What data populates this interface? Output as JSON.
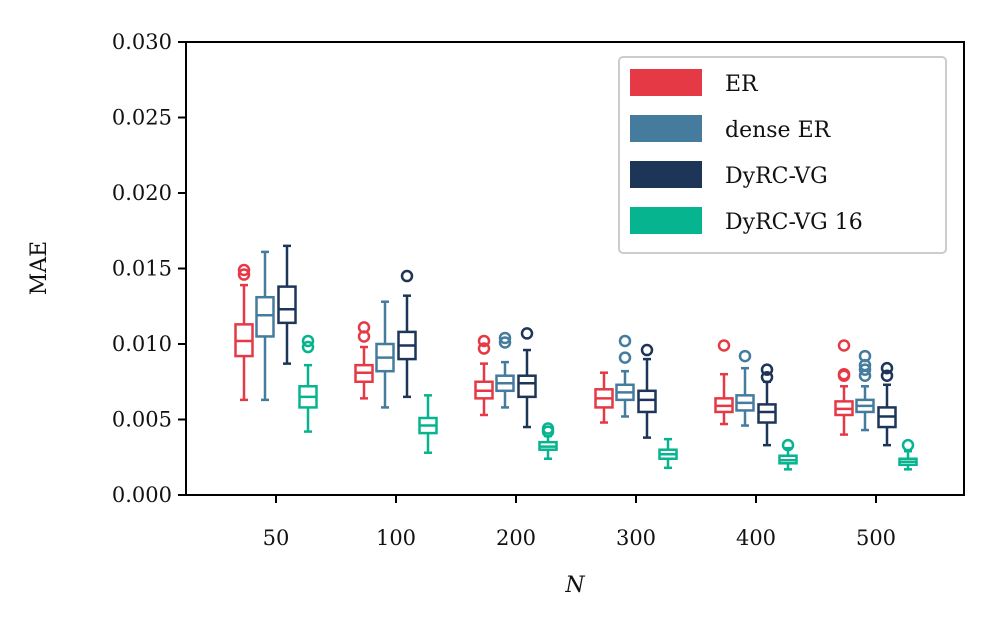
{
  "chart_data": {
    "type": "boxplot",
    "xlabel": "N",
    "ylabel": "MAE",
    "ylim": [
      0,
      0.03
    ],
    "yticks": [
      "0.000",
      "0.005",
      "0.010",
      "0.015",
      "0.020",
      "0.025",
      "0.030"
    ],
    "yticks_values": [
      0,
      0.005,
      0.01,
      0.015,
      0.02,
      0.025,
      0.03
    ],
    "categories": [
      "50",
      "100",
      "200",
      "300",
      "400",
      "500"
    ],
    "legend_position": "top-right",
    "grid": false,
    "series": [
      {
        "name": "ER",
        "color": "#e63946",
        "boxes": [
          {
            "whislo": 0.0063,
            "q1": 0.0092,
            "med": 0.0102,
            "q3": 0.0113,
            "whishi": 0.0139,
            "fliers": [
              0.0146,
              0.0149
            ]
          },
          {
            "whislo": 0.0064,
            "q1": 0.0075,
            "med": 0.0081,
            "q3": 0.0086,
            "whishi": 0.0098,
            "fliers": [
              0.0105,
              0.0111
            ]
          },
          {
            "whislo": 0.0053,
            "q1": 0.0064,
            "med": 0.0069,
            "q3": 0.0075,
            "whishi": 0.0087,
            "fliers": [
              0.0097,
              0.0102
            ]
          },
          {
            "whislo": 0.0048,
            "q1": 0.0058,
            "med": 0.0064,
            "q3": 0.007,
            "whishi": 0.0081,
            "fliers": []
          },
          {
            "whislo": 0.0047,
            "q1": 0.0055,
            "med": 0.0059,
            "q3": 0.0064,
            "whishi": 0.008,
            "fliers": [
              0.0099
            ]
          },
          {
            "whislo": 0.004,
            "q1": 0.0053,
            "med": 0.0057,
            "q3": 0.0062,
            "whishi": 0.0072,
            "fliers": [
              0.0079,
              0.008,
              0.0099
            ]
          }
        ]
      },
      {
        "name": "dense ER",
        "color": "#457b9d",
        "boxes": [
          {
            "whislo": 0.0063,
            "q1": 0.0105,
            "med": 0.0119,
            "q3": 0.0131,
            "whishi": 0.0161,
            "fliers": []
          },
          {
            "whislo": 0.0058,
            "q1": 0.0082,
            "med": 0.0091,
            "q3": 0.01,
            "whishi": 0.0128,
            "fliers": []
          },
          {
            "whislo": 0.0058,
            "q1": 0.0069,
            "med": 0.0074,
            "q3": 0.0079,
            "whishi": 0.0088,
            "fliers": [
              0.0101,
              0.0104
            ]
          },
          {
            "whislo": 0.0052,
            "q1": 0.0063,
            "med": 0.0068,
            "q3": 0.0073,
            "whishi": 0.0082,
            "fliers": [
              0.0091,
              0.0102
            ]
          },
          {
            "whislo": 0.0046,
            "q1": 0.0056,
            "med": 0.0061,
            "q3": 0.0066,
            "whishi": 0.0084,
            "fliers": [
              0.0092
            ]
          },
          {
            "whislo": 0.0043,
            "q1": 0.0055,
            "med": 0.0059,
            "q3": 0.0063,
            "whishi": 0.0072,
            "fliers": [
              0.0079,
              0.0083,
              0.0086,
              0.0092
            ]
          }
        ]
      },
      {
        "name": "DyRC-VG",
        "color": "#1d3557",
        "boxes": [
          {
            "whislo": 0.0087,
            "q1": 0.0114,
            "med": 0.0123,
            "q3": 0.0138,
            "whishi": 0.0165,
            "fliers": []
          },
          {
            "whislo": 0.0065,
            "q1": 0.009,
            "med": 0.0099,
            "q3": 0.0108,
            "whishi": 0.0132,
            "fliers": [
              0.0145
            ]
          },
          {
            "whislo": 0.0045,
            "q1": 0.0065,
            "med": 0.0074,
            "q3": 0.0079,
            "whishi": 0.0096,
            "fliers": [
              0.0107
            ]
          },
          {
            "whislo": 0.0038,
            "q1": 0.0055,
            "med": 0.0063,
            "q3": 0.0069,
            "whishi": 0.009,
            "fliers": [
              0.0096
            ]
          },
          {
            "whislo": 0.0033,
            "q1": 0.0048,
            "med": 0.0055,
            "q3": 0.006,
            "whishi": 0.0075,
            "fliers": [
              0.0078,
              0.0083
            ]
          },
          {
            "whislo": 0.0033,
            "q1": 0.0045,
            "med": 0.0052,
            "q3": 0.0058,
            "whishi": 0.0073,
            "fliers": [
              0.0079,
              0.0084
            ]
          }
        ]
      },
      {
        "name": "DyRC-VG 16",
        "color": "#06b48f",
        "boxes": [
          {
            "whislo": 0.0042,
            "q1": 0.0058,
            "med": 0.0065,
            "q3": 0.0072,
            "whishi": 0.0086,
            "fliers": [
              0.0098,
              0.0102
            ]
          },
          {
            "whislo": 0.0028,
            "q1": 0.0041,
            "med": 0.0046,
            "q3": 0.0051,
            "whishi": 0.0066,
            "fliers": []
          },
          {
            "whislo": 0.0024,
            "q1": 0.003,
            "med": 0.0032,
            "q3": 0.0035,
            "whishi": 0.0039,
            "fliers": [
              0.0042,
              0.0044
            ]
          },
          {
            "whislo": 0.0018,
            "q1": 0.0024,
            "med": 0.0027,
            "q3": 0.003,
            "whishi": 0.0037,
            "fliers": []
          },
          {
            "whislo": 0.0017,
            "q1": 0.0021,
            "med": 0.0023,
            "q3": 0.0026,
            "whishi": 0.0031,
            "fliers": [
              0.0033
            ]
          },
          {
            "whislo": 0.0017,
            "q1": 0.002,
            "med": 0.0022,
            "q3": 0.0024,
            "whishi": 0.0029,
            "fliers": [
              0.0033
            ]
          }
        ]
      }
    ]
  }
}
